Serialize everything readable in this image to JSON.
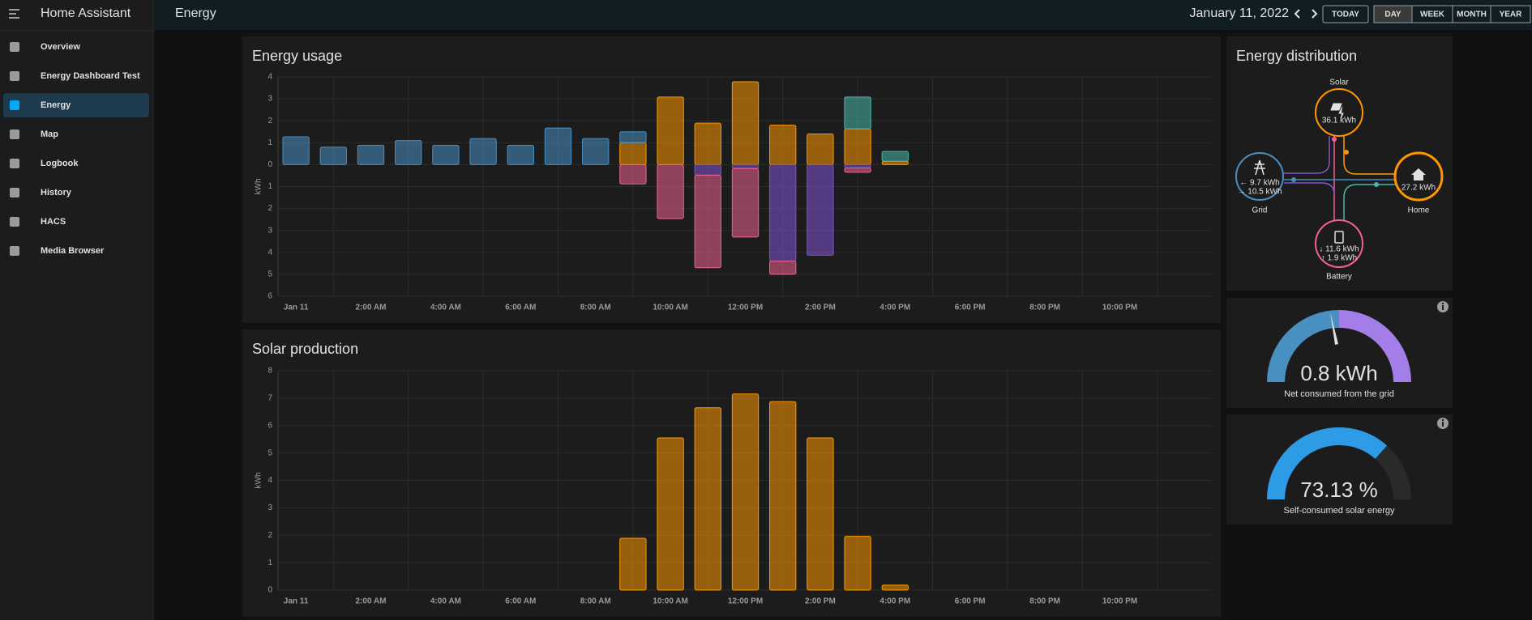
{
  "sidebar": {
    "title": "Home Assistant",
    "items": [
      "Overview",
      "Energy Dashboard Test",
      "Energy",
      "Map",
      "Logbook",
      "History",
      "HACS",
      "Media Browser"
    ],
    "active": 2
  },
  "header": {
    "title": "Energy",
    "date": "January 11, 2022",
    "today": "TODAY",
    "periods": [
      "DAY",
      "WEEK",
      "MONTH",
      "YEAR"
    ],
    "active_period": 0
  },
  "energy_usage": {
    "type": "bar",
    "stacked": true,
    "title": "Energy usage",
    "y_label": "kWh",
    "categories": [
      "Jan 11",
      null,
      "2:00 AM",
      null,
      "4:00 AM",
      null,
      "6:00 AM",
      null,
      "8:00 AM",
      null,
      "10:00 AM",
      null,
      "12:00 PM",
      null,
      "2:00 PM",
      null,
      "4:00 PM",
      null,
      "6:00 PM",
      null,
      "8:00 PM",
      null,
      "10:00 PM",
      null
    ],
    "ylim": [
      -6,
      4
    ],
    "yticks": [
      {
        "value": -6,
        "label": "6"
      },
      {
        "value": -5,
        "label": "5"
      },
      {
        "value": -4,
        "label": "4"
      },
      {
        "value": -3,
        "label": "3"
      },
      {
        "value": -2,
        "label": "2"
      },
      {
        "value": -1,
        "label": "1"
      },
      0,
      1,
      2,
      3,
      4
    ],
    "grid": true,
    "series": [
      {
        "color": "#ff9800",
        "values": [
          0,
          0,
          0,
          0,
          0,
          0,
          0,
          0,
          0,
          1.0,
          3.08,
          1.89,
          3.78,
          1.8,
          1.4,
          1.63,
          0.15,
          0,
          0,
          0,
          0,
          0,
          0,
          0
        ]
      },
      {
        "color": "#4db6ac",
        "values": [
          0,
          0,
          0,
          0,
          0,
          0,
          0,
          0,
          0,
          0,
          0,
          0,
          0,
          0,
          0,
          1.45,
          0.45,
          0,
          0,
          0,
          0,
          0,
          0,
          0
        ]
      },
      {
        "color": "#488fc2",
        "values": [
          1.27,
          0.8,
          0.88,
          1.1,
          0.88,
          1.19,
          0.88,
          1.67,
          1.19,
          0.5,
          0,
          0,
          0,
          0,
          0,
          0,
          0,
          0,
          0,
          0,
          0,
          0,
          0,
          0
        ]
      },
      {
        "color": "#8353d4",
        "values": [
          0,
          0,
          0,
          0,
          0,
          0,
          0,
          0,
          0,
          0,
          0,
          -0.48,
          -0.18,
          -4.4,
          -4.13,
          -0.15,
          0,
          0,
          0,
          0,
          0,
          0,
          0,
          0
        ]
      },
      {
        "color": "#f06292",
        "values": [
          0,
          0,
          0,
          0,
          0,
          0,
          0,
          0,
          0,
          -0.88,
          -2.46,
          -4.22,
          -3.12,
          -0.6,
          0,
          -0.2,
          0,
          0,
          0,
          0,
          0,
          0,
          0,
          0
        ]
      }
    ]
  },
  "solar_production": {
    "type": "bar",
    "title": "Solar production",
    "y_label": "kWh",
    "categories": [
      "Jan 11",
      null,
      "2:00 AM",
      null,
      "4:00 AM",
      null,
      "6:00 AM",
      null,
      "8:00 AM",
      null,
      "10:00 AM",
      null,
      "12:00 PM",
      null,
      "2:00 PM",
      null,
      "4:00 PM",
      null,
      "6:00 PM",
      null,
      "8:00 PM",
      null,
      "10:00 PM",
      null
    ],
    "ylim": [
      0,
      8
    ],
    "yticks": [
      0,
      1,
      2,
      3,
      4,
      5,
      6,
      7,
      8
    ],
    "grid": true,
    "series": [
      {
        "color": "#ff9800",
        "values": [
          0,
          0,
          0,
          0,
          0,
          0,
          0,
          0,
          0,
          1.89,
          5.55,
          6.65,
          7.15,
          6.87,
          5.55,
          1.96,
          0.18,
          0,
          0,
          0,
          0,
          0,
          0,
          0
        ]
      }
    ]
  },
  "distribution": {
    "title": "Energy distribution",
    "solar": {
      "label": "Solar",
      "value": "36.1 kWh"
    },
    "grid": {
      "label": "Grid",
      "returned": "← 9.7 kWh",
      "consumed": "→ 10.5 kWh"
    },
    "home": {
      "label": "Home",
      "value": "27.2 kWh"
    },
    "battery": {
      "label": "Battery",
      "charged": "↓ 11.6 kWh",
      "discharged": "↑ 1.9 kWh"
    }
  },
  "gauges": [
    {
      "label": "0.8 kWh",
      "name": "Net consumed from the grid"
    },
    {
      "value": 73.13,
      "label": "73.13 %",
      "lim": [
        0,
        100
      ],
      "name": "Self-consumed solar energy"
    }
  ]
}
